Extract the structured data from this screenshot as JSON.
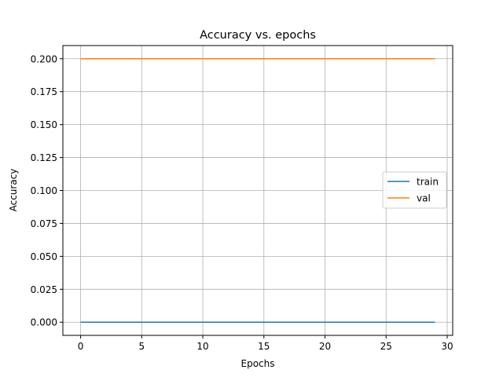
{
  "chart_data": {
    "type": "line",
    "title": "Accuracy vs. epochs",
    "xlabel": "Epochs",
    "ylabel": "Accuracy",
    "xlim": [
      -1.45,
      30.45
    ],
    "ylim": [
      -0.01,
      0.21
    ],
    "x_ticks": [
      0,
      5,
      10,
      15,
      20,
      25,
      30
    ],
    "y_ticks": [
      0.0,
      0.025,
      0.05,
      0.075,
      0.1,
      0.125,
      0.15,
      0.175,
      0.2
    ],
    "x_tick_labels": [
      "0",
      "5",
      "10",
      "15",
      "20",
      "25",
      "30"
    ],
    "y_tick_labels": [
      "0.000",
      "0.025",
      "0.050",
      "0.075",
      "0.100",
      "0.125",
      "0.150",
      "0.175",
      "0.200"
    ],
    "grid": true,
    "legend_position": "center-right",
    "x": [
      0,
      1,
      2,
      3,
      4,
      5,
      6,
      7,
      8,
      9,
      10,
      11,
      12,
      13,
      14,
      15,
      16,
      17,
      18,
      19,
      20,
      21,
      22,
      23,
      24,
      25,
      26,
      27,
      28,
      29
    ],
    "series": [
      {
        "name": "train",
        "color": "#1f77b4",
        "values": [
          0,
          0,
          0,
          0,
          0,
          0,
          0,
          0,
          0,
          0,
          0,
          0,
          0,
          0,
          0,
          0,
          0,
          0,
          0,
          0,
          0,
          0,
          0,
          0,
          0,
          0,
          0,
          0,
          0,
          0
        ]
      },
      {
        "name": "val",
        "color": "#ff7f0e",
        "values": [
          0.2,
          0.2,
          0.2,
          0.2,
          0.2,
          0.2,
          0.2,
          0.2,
          0.2,
          0.2,
          0.2,
          0.2,
          0.2,
          0.2,
          0.2,
          0.2,
          0.2,
          0.2,
          0.2,
          0.2,
          0.2,
          0.2,
          0.2,
          0.2,
          0.2,
          0.2,
          0.2,
          0.2,
          0.2,
          0.2
        ]
      }
    ]
  }
}
